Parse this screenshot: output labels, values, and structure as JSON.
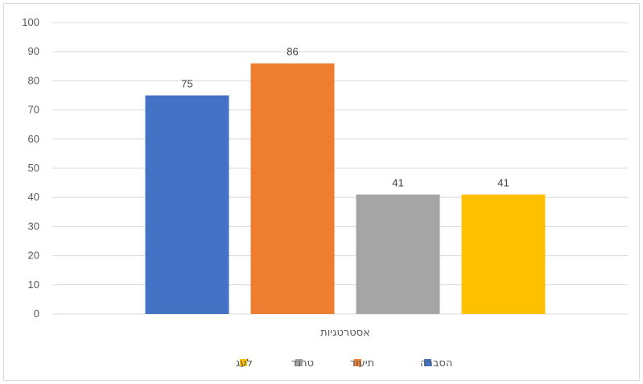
{
  "chart_data": {
    "type": "bar",
    "categories": [
      "אסטרטגיות"
    ],
    "series": [
      {
        "name": "הסברה",
        "values": [
          75
        ],
        "color": "#4472c4"
      },
      {
        "name": "תיעוד",
        "values": [
          86
        ],
        "color": "#ed7d31"
      },
      {
        "name": "טרנד",
        "values": [
          41
        ],
        "color": "#a5a5a5"
      },
      {
        "name": "לעג",
        "values": [
          41
        ],
        "color": "#ffc000"
      }
    ],
    "ylim": [
      0,
      100
    ],
    "yticks": [
      0,
      10,
      20,
      30,
      40,
      50,
      60,
      70,
      80,
      90,
      100
    ],
    "grid": true,
    "data_labels": true,
    "legend": "bottom-center",
    "gridline_color": "#d9d9d9",
    "text_color": "#595959"
  }
}
